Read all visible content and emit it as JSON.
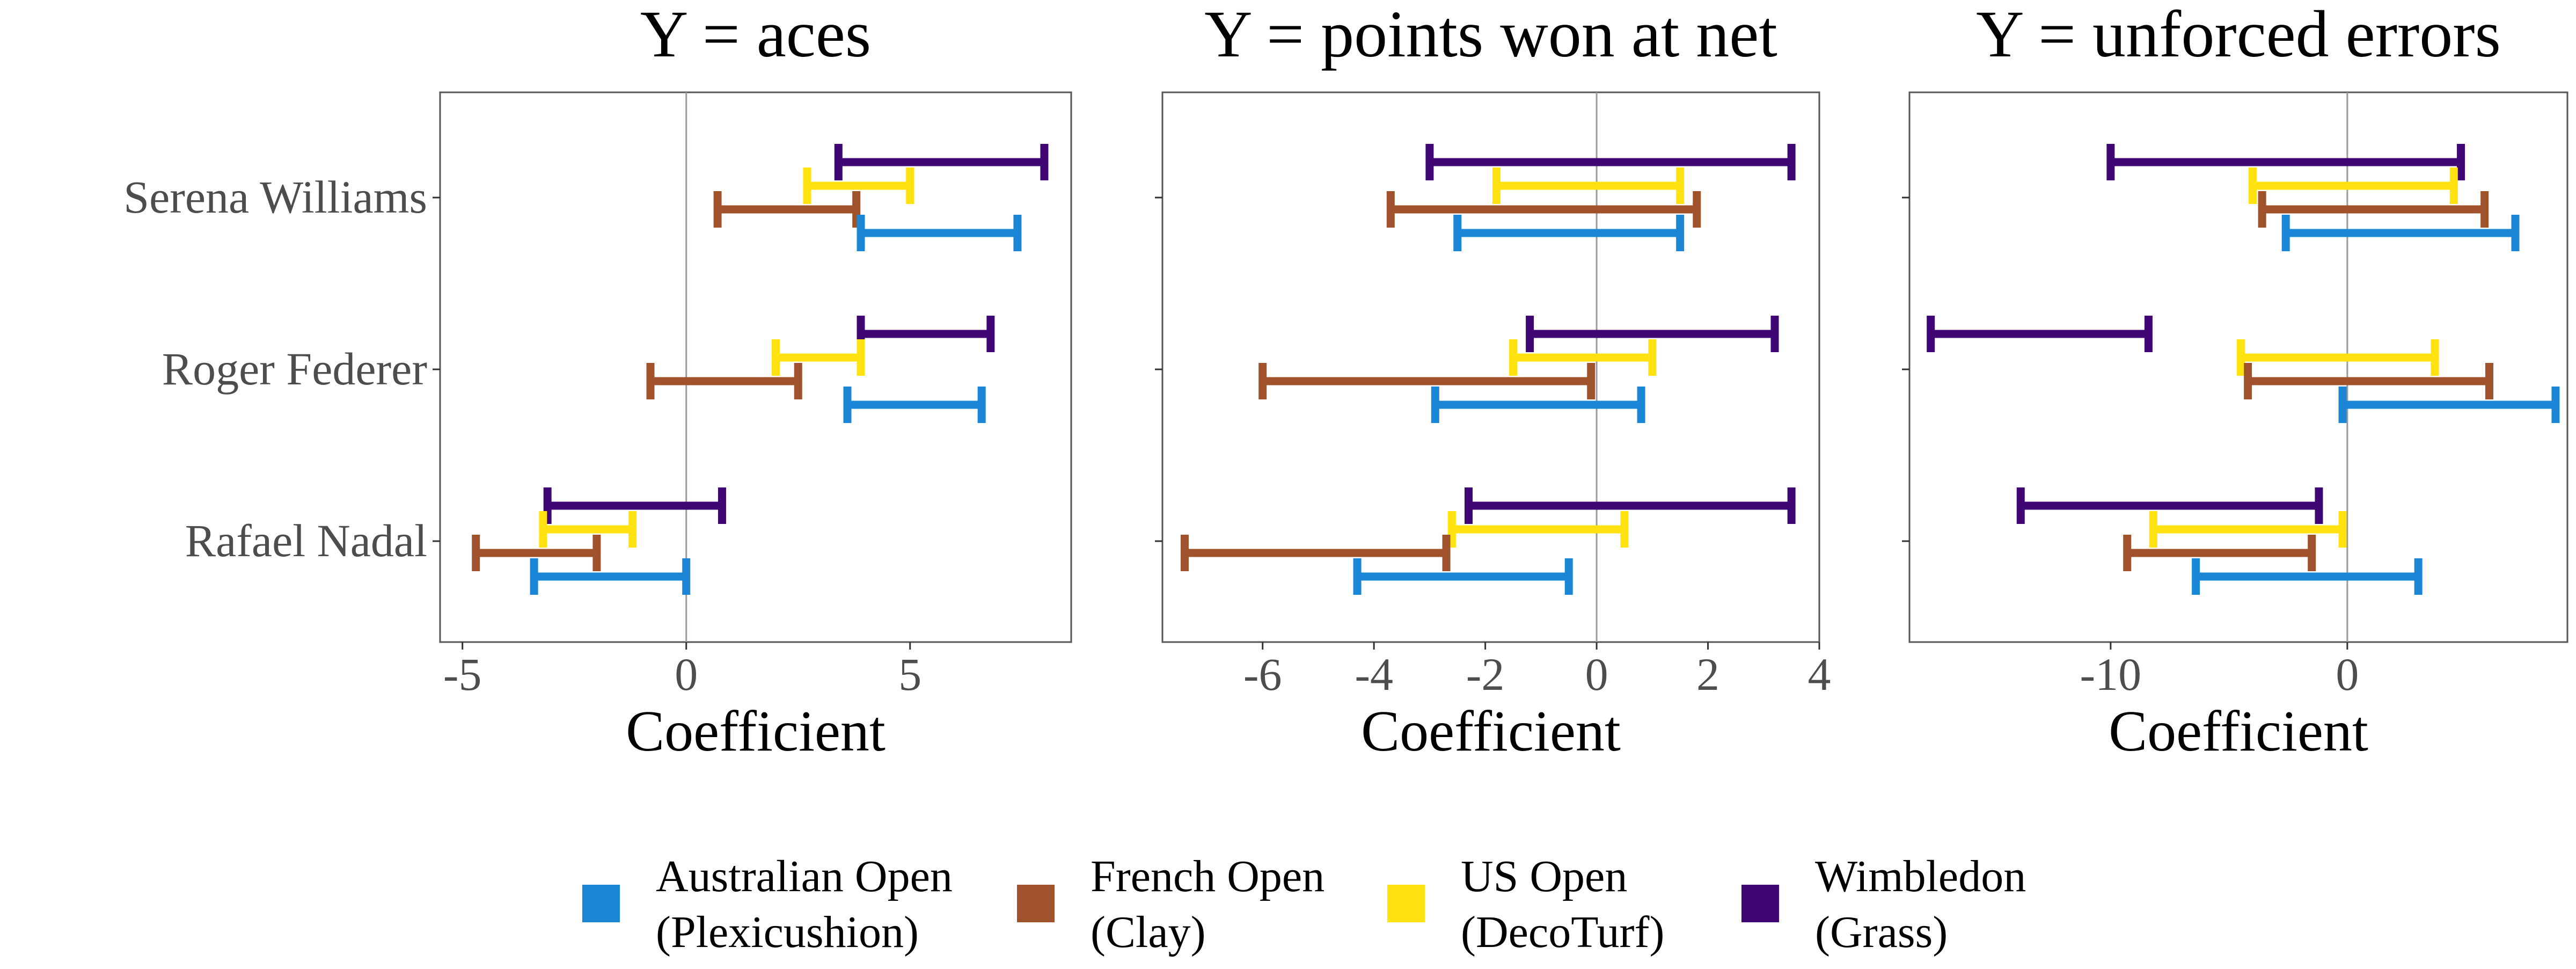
{
  "chart_data": {
    "type": "errorbar",
    "layout": "three facet panels sharing a y axis, legend at bottom",
    "categories": [
      "Serena Williams",
      "Roger Federer",
      "Rafael Nadal"
    ],
    "legend": {
      "position": "bottom",
      "items": [
        {
          "key": "ao",
          "label_line1": "Australian Open",
          "label_line2": "(Plexicushion)",
          "color": "#1B85D6"
        },
        {
          "key": "fo",
          "label_line1": "French Open",
          "label_line2": "(Clay)",
          "color": "#A0522D"
        },
        {
          "key": "uso",
          "label_line1": "US Open",
          "label_line2": "(DecoTurf)",
          "color": "#FFE20F"
        },
        {
          "key": "wim",
          "label_line1": "Wimbledon",
          "label_line2": "(Grass)",
          "color": "#3F0674"
        }
      ]
    },
    "reference_line": 0,
    "panels": [
      {
        "title": "Y = aces",
        "xlabel": "Coefficient",
        "xlim": [
          -5.5,
          8.6
        ],
        "xticks": [
          -5,
          0,
          5
        ],
        "xtick_labels": [
          "-5",
          "0",
          "5"
        ],
        "grid": false,
        "series": [
          {
            "key": "wim",
            "intervals": [
              [
                3.4,
                8.0
              ],
              [
                3.9,
                6.8
              ],
              [
                -3.1,
                0.8
              ]
            ]
          },
          {
            "key": "uso",
            "intervals": [
              [
                2.7,
                5.0
              ],
              [
                2.0,
                3.9
              ],
              [
                -3.2,
                -1.2
              ]
            ]
          },
          {
            "key": "fo",
            "intervals": [
              [
                0.7,
                3.8
              ],
              [
                -0.8,
                2.5
              ],
              [
                -4.7,
                -2.0
              ]
            ]
          },
          {
            "key": "ao",
            "intervals": [
              [
                3.9,
                7.4
              ],
              [
                3.6,
                6.6
              ],
              [
                -3.4,
                0.0
              ]
            ]
          }
        ]
      },
      {
        "title": "Y = points won at net",
        "xlabel": "Coefficient",
        "xlim": [
          -7.8,
          4.0
        ],
        "xticks": [
          -6,
          -4,
          -2,
          0,
          2,
          4
        ],
        "xtick_labels": [
          "-6",
          "-4",
          "-2",
          "0",
          "2",
          "4"
        ],
        "grid": false,
        "series": [
          {
            "key": "wim",
            "intervals": [
              [
                -3.0,
                3.5
              ],
              [
                -1.2,
                3.2
              ],
              [
                -2.3,
                3.5
              ]
            ]
          },
          {
            "key": "uso",
            "intervals": [
              [
                -1.8,
                1.5
              ],
              [
                -1.5,
                1.0
              ],
              [
                -2.6,
                0.5
              ]
            ]
          },
          {
            "key": "fo",
            "intervals": [
              [
                -3.7,
                1.8
              ],
              [
                -6.0,
                -0.1
              ],
              [
                -7.4,
                -2.7
              ]
            ]
          },
          {
            "key": "ao",
            "intervals": [
              [
                -2.5,
                1.5
              ],
              [
                -2.9,
                0.8
              ],
              [
                -4.3,
                -0.5
              ]
            ]
          }
        ]
      },
      {
        "title": "Y = unforced errors",
        "xlabel": "Coefficient",
        "xlim": [
          -18.5,
          9.3
        ],
        "xticks": [
          -10,
          0
        ],
        "xtick_labels": [
          "-10",
          "0"
        ],
        "grid": false,
        "series": [
          {
            "key": "wim",
            "intervals": [
              [
                -10.0,
                4.8
              ],
              [
                -17.6,
                -8.4
              ],
              [
                -13.8,
                -1.2
              ]
            ]
          },
          {
            "key": "uso",
            "intervals": [
              [
                -4.0,
                4.5
              ],
              [
                -4.5,
                3.7
              ],
              [
                -8.2,
                -0.2
              ]
            ]
          },
          {
            "key": "fo",
            "intervals": [
              [
                -3.6,
                5.8
              ],
              [
                -4.2,
                6.0
              ],
              [
                -9.3,
                -1.5
              ]
            ]
          },
          {
            "key": "ao",
            "intervals": [
              [
                -2.6,
                7.1
              ],
              [
                -0.2,
                8.8
              ],
              [
                -6.4,
                3.0
              ]
            ]
          }
        ]
      }
    ]
  }
}
